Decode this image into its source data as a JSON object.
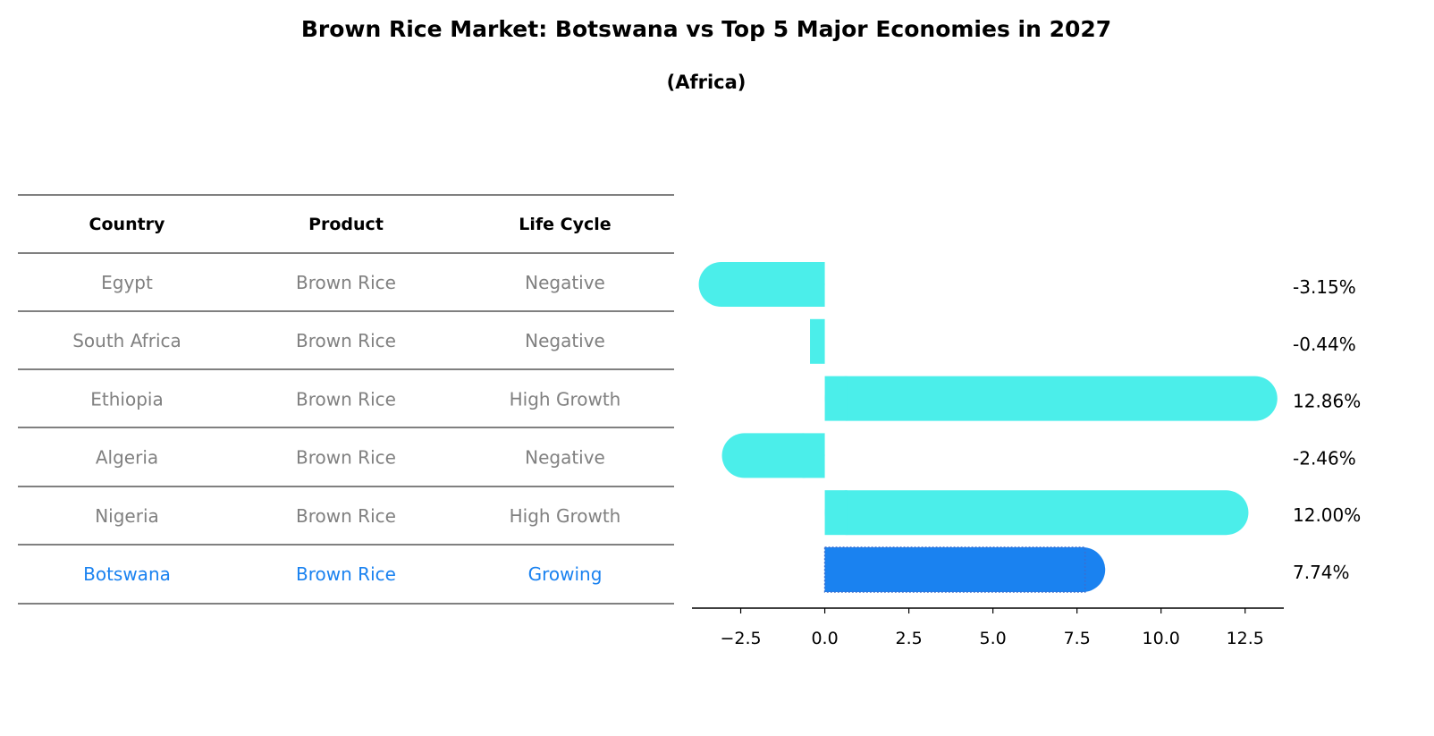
{
  "chart_data": {
    "type": "bar",
    "orientation": "horizontal",
    "title": "Brown Rice Market: Botswana vs Top 5 Major Economies in 2027",
    "subtitle": "(Africa)",
    "table": {
      "headers": [
        "Country",
        "Product",
        "Life Cycle"
      ],
      "rows": [
        [
          "Egypt",
          "Brown Rice",
          "Negative"
        ],
        [
          "South Africa",
          "Brown Rice",
          "Negative"
        ],
        [
          "Ethiopia",
          "Brown Rice",
          "High Growth"
        ],
        [
          "Algeria",
          "Brown Rice",
          "Negative"
        ],
        [
          "Nigeria",
          "Brown Rice",
          "High Growth"
        ],
        [
          "Botswana",
          "Brown Rice",
          "Growing"
        ]
      ]
    },
    "categories": [
      "Egypt",
      "South Africa",
      "Ethiopia",
      "Algeria",
      "Nigeria",
      "Botswana"
    ],
    "values": [
      -3.15,
      -0.44,
      12.86,
      -2.46,
      12.0,
      7.74
    ],
    "value_labels": [
      "-3.15%",
      "-0.44%",
      "12.86%",
      "-2.46%",
      "12.00%",
      "7.74%"
    ],
    "highlight": "Botswana",
    "xlim": [
      -3.95,
      13.65
    ],
    "xticks": [
      -2.5,
      0.0,
      2.5,
      5.0,
      7.5,
      10.0,
      12.5
    ],
    "xtick_labels": [
      "−2.5",
      "0.0",
      "2.5",
      "5.0",
      "7.5",
      "10.0",
      "12.5"
    ],
    "xlabel": "",
    "ylabel": "",
    "colors": {
      "bar": "#4beeea",
      "highlight": "#1a82f0",
      "row_text": "#808080",
      "highlight_text": "#1a82f0"
    }
  }
}
